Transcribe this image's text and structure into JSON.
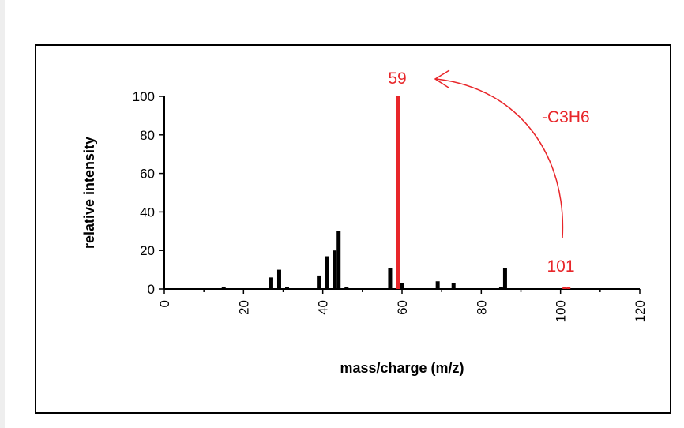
{
  "chart_data": {
    "type": "bar",
    "title": "",
    "xlabel": "mass/charge (m/z)",
    "ylabel": "relative intensity",
    "xlim": [
      0,
      120
    ],
    "ylim": [
      0,
      100
    ],
    "x_ticks": [
      0,
      20,
      40,
      60,
      80,
      100,
      120
    ],
    "y_ticks": [
      0,
      20,
      40,
      60,
      80,
      100
    ],
    "grid": false,
    "legend": "none",
    "colors": {
      "normal": "#000000",
      "highlight": "#e8262a"
    },
    "peaks": [
      {
        "mz": 15,
        "intensity": 1
      },
      {
        "mz": 27,
        "intensity": 6
      },
      {
        "mz": 29,
        "intensity": 10
      },
      {
        "mz": 31,
        "intensity": 1
      },
      {
        "mz": 39,
        "intensity": 7
      },
      {
        "mz": 41,
        "intensity": 17
      },
      {
        "mz": 43,
        "intensity": 20
      },
      {
        "mz": 44,
        "intensity": 30
      },
      {
        "mz": 46,
        "intensity": 1
      },
      {
        "mz": 57,
        "intensity": 11
      },
      {
        "mz": 59,
        "intensity": 100,
        "highlight": true
      },
      {
        "mz": 60,
        "intensity": 3
      },
      {
        "mz": 69,
        "intensity": 4
      },
      {
        "mz": 73,
        "intensity": 3
      },
      {
        "mz": 85,
        "intensity": 1
      },
      {
        "mz": 86,
        "intensity": 11
      },
      {
        "mz": 101,
        "intensity": 1,
        "highlight": true
      },
      {
        "mz": 102,
        "intensity": 1,
        "highlight": true
      }
    ],
    "annotations": {
      "peak_59_label": "59",
      "peak_101_label": "101",
      "loss_label": "-C3H6"
    }
  }
}
